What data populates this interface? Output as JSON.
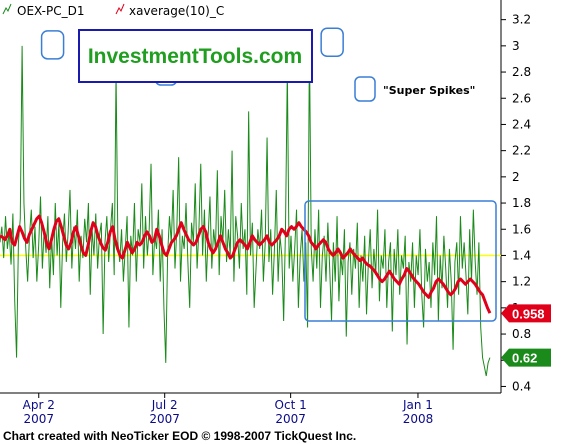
{
  "footer": "Chart created with NeoTicker EOD © 1998-2007 TickQuest Inc.",
  "brand": "InvestmentTools.com",
  "annotation": "\"Super Spikes\"",
  "legend": [
    {
      "label": "OEX-PC_D1",
      "color": "#1a8a1a",
      "icon": "line-chart-icon"
    },
    {
      "label": "xaverage(10)_C",
      "color": "#e0001a",
      "icon": "line-chart-icon"
    }
  ],
  "value_labels": [
    {
      "text": "0.958",
      "color": "#e0001a",
      "value": 0.958
    },
    {
      "text": "0.62",
      "color": "#1a8a1a",
      "value": 0.62
    }
  ],
  "chart_data": {
    "type": "line",
    "y_ticks": [
      "3.2",
      "3",
      "2.8",
      "2.6",
      "2.4",
      "2.2",
      "2",
      "1.8",
      "1.6",
      "1.4",
      "1.2",
      "1",
      "0.8",
      "0.6",
      "0.4"
    ],
    "ylim": [
      0.35,
      3.35
    ],
    "x_ticks": [
      {
        "label": "Apr 2",
        "year": "2007",
        "date": "2007-04-02"
      },
      {
        "label": "Jul 2",
        "year": "2007",
        "date": "2007-07-02"
      },
      {
        "label": "Oct 1",
        "year": "2007",
        "date": "2007-10-01"
      },
      {
        "label": "Jan 1",
        "year": "2008",
        "date": "2008-01-01"
      }
    ],
    "xlim": [
      "2007-03-05",
      "2008-03-01"
    ],
    "reference_line": {
      "value": 1.4,
      "color": "#ffff00"
    },
    "spikes": [
      {
        "date": "2007-04-12",
        "value": 3.0
      },
      {
        "date": "2007-07-03",
        "value": 2.8
      },
      {
        "date": "2007-10-31",
        "value": 3.02
      }
    ],
    "series": [
      {
        "name": "OEX-PC_D1",
        "color": "#1a8a1a",
        "start_date": "2007-03-05",
        "end_date": "2008-02-22",
        "values": [
          1.5,
          1.62,
          1.38,
          1.7,
          1.45,
          1.58,
          1.33,
          1.72,
          1.05,
          0.62,
          1.5,
          1.68,
          3.0,
          1.8,
          1.45,
          1.2,
          1.55,
          1.75,
          1.38,
          1.62,
          1.2,
          1.48,
          1.85,
          1.3,
          1.6,
          1.42,
          1.7,
          1.15,
          1.55,
          1.25,
          1.8,
          1.4,
          1.65,
          1.0,
          1.5,
          1.72,
          1.35,
          1.58,
          1.9,
          1.3,
          1.62,
          1.45,
          1.75,
          1.2,
          1.55,
          1.38,
          1.68,
          1.5,
          1.8,
          1.1,
          1.6,
          1.4,
          1.72,
          1.3,
          1.55,
          1.65,
          0.8,
          1.5,
          1.7,
          1.35,
          1.6,
          1.8,
          1.25,
          2.8,
          1.5,
          1.35,
          1.6,
          1.2,
          1.45,
          1.7,
          0.85,
          1.55,
          1.4,
          1.8,
          1.2,
          1.6,
          1.5,
          1.95,
          1.3,
          1.7,
          1.4,
          1.6,
          2.1,
          1.25,
          1.55,
          1.45,
          1.75,
          1.2,
          1.6,
          1.0,
          0.58,
          1.4,
          1.7,
          1.5,
          1.9,
          1.3,
          1.6,
          2.15,
          1.2,
          1.55,
          1.45,
          1.8,
          1.35,
          1.0,
          1.65,
          1.5,
          1.95,
          1.3,
          1.6,
          2.1,
          1.4,
          1.75,
          1.2,
          1.55,
          1.85,
          1.3,
          1.6,
          1.45,
          2.05,
          1.25,
          1.7,
          1.5,
          1.9,
          1.35,
          1.6,
          1.4,
          2.2,
          1.2,
          1.7,
          1.55,
          1.3,
          1.8,
          1.45,
          1.6,
          1.1,
          2.5,
          1.4,
          1.65,
          1.0,
          1.3,
          1.6,
          1.45,
          1.75,
          1.2,
          1.5,
          2.3,
          1.35,
          1.6,
          1.1,
          1.45,
          1.9,
          1.2,
          1.55,
          1.4,
          0.9,
          1.6,
          2.82,
          1.3,
          1.55,
          1.2,
          1.45,
          1.75,
          1.0,
          1.4,
          1.6,
          1.2,
          1.5,
          0.85,
          3.02,
          1.45,
          1.2,
          1.6,
          1.3,
          1.75,
          1.0,
          1.4,
          1.55,
          1.2,
          1.65,
          1.3,
          0.9,
          1.5,
          1.2,
          1.7,
          1.05,
          1.4,
          1.25,
          1.6,
          0.78,
          1.35,
          1.5,
          1.1,
          1.45,
          1.3,
          1.65,
          1.0,
          1.4,
          1.2,
          1.55,
          0.95,
          1.35,
          1.6,
          1.15,
          1.45,
          1.25,
          1.75,
          1.05,
          1.4,
          1.3,
          1.6,
          1.0,
          1.35,
          1.5,
          0.82,
          1.45,
          1.25,
          1.6,
          1.1,
          1.4,
          1.3,
          1.55,
          0.72,
          1.35,
          1.2,
          1.5,
          1.0,
          1.4,
          1.25,
          1.6,
          1.1,
          0.85,
          1.45,
          1.2,
          1.35,
          1.0,
          1.5,
          1.25,
          1.7,
          0.9,
          1.4,
          1.15,
          1.55,
          1.3,
          1.0,
          1.45,
          1.2,
          0.68,
          1.35,
          1.5,
          1.1,
          1.7,
          1.3,
          1.5,
          1.25,
          0.95,
          1.6,
          1.2,
          1.75,
          1.35,
          1.1,
          1.5,
          0.85,
          0.62,
          0.55,
          0.48,
          0.58,
          0.62
        ]
      },
      {
        "name": "xaverage(10)_C",
        "color": "#e0001a",
        "start_date": "2007-03-05",
        "end_date": "2008-02-22",
        "values": [
          1.55,
          1.54,
          1.52,
          1.55,
          1.6,
          1.5,
          1.48,
          1.55,
          1.62,
          1.58,
          1.53,
          1.5,
          1.56,
          1.6,
          1.64,
          1.68,
          1.7,
          1.65,
          1.58,
          1.5,
          1.45,
          1.52,
          1.6,
          1.66,
          1.68,
          1.62,
          1.55,
          1.48,
          1.45,
          1.5,
          1.58,
          1.62,
          1.55,
          1.48,
          1.42,
          1.4,
          1.48,
          1.58,
          1.65,
          1.62,
          1.55,
          1.5,
          1.46,
          1.44,
          1.5,
          1.58,
          1.62,
          1.52,
          1.45,
          1.4,
          1.38,
          1.44,
          1.5,
          1.46,
          1.42,
          1.45,
          1.5,
          1.48,
          1.5,
          1.55,
          1.58,
          1.55,
          1.5,
          1.52,
          1.6,
          1.55,
          1.48,
          1.42,
          1.4,
          1.45,
          1.5,
          1.52,
          1.55,
          1.6,
          1.65,
          1.6,
          1.56,
          1.52,
          1.5,
          1.48,
          1.5,
          1.55,
          1.6,
          1.62,
          1.58,
          1.5,
          1.45,
          1.42,
          1.45,
          1.5,
          1.55,
          1.5,
          1.45,
          1.42,
          1.38,
          1.4,
          1.45,
          1.5,
          1.52,
          1.5,
          1.48,
          1.45,
          1.5,
          1.55,
          1.52,
          1.5,
          1.48,
          1.5,
          1.52,
          1.55,
          1.5,
          1.48,
          1.5,
          1.52,
          1.55,
          1.6,
          1.58,
          1.55,
          1.6,
          1.62,
          1.6,
          1.62,
          1.65,
          1.62,
          1.6,
          1.58,
          1.55,
          1.5,
          1.48,
          1.45,
          1.48,
          1.5,
          1.52,
          1.5,
          1.45,
          1.42,
          1.4,
          1.42,
          1.45,
          1.42,
          1.38,
          1.4,
          1.42,
          1.45,
          1.42,
          1.4,
          1.38,
          1.36,
          1.38,
          1.35,
          1.33,
          1.32,
          1.3,
          1.28,
          1.25,
          1.22,
          1.2,
          1.22,
          1.25,
          1.28,
          1.25,
          1.22,
          1.2,
          1.18,
          1.22,
          1.25,
          1.3,
          1.28,
          1.25,
          1.22,
          1.2,
          1.18,
          1.15,
          1.12,
          1.1,
          1.08,
          1.12,
          1.15,
          1.2,
          1.22,
          1.2,
          1.18,
          1.15,
          1.12,
          1.1,
          1.12,
          1.15,
          1.2,
          1.22,
          1.2,
          1.18,
          1.2,
          1.22,
          1.2,
          1.18,
          1.15,
          1.12,
          1.1,
          1.05,
          1.0,
          0.96
        ]
      }
    ]
  }
}
